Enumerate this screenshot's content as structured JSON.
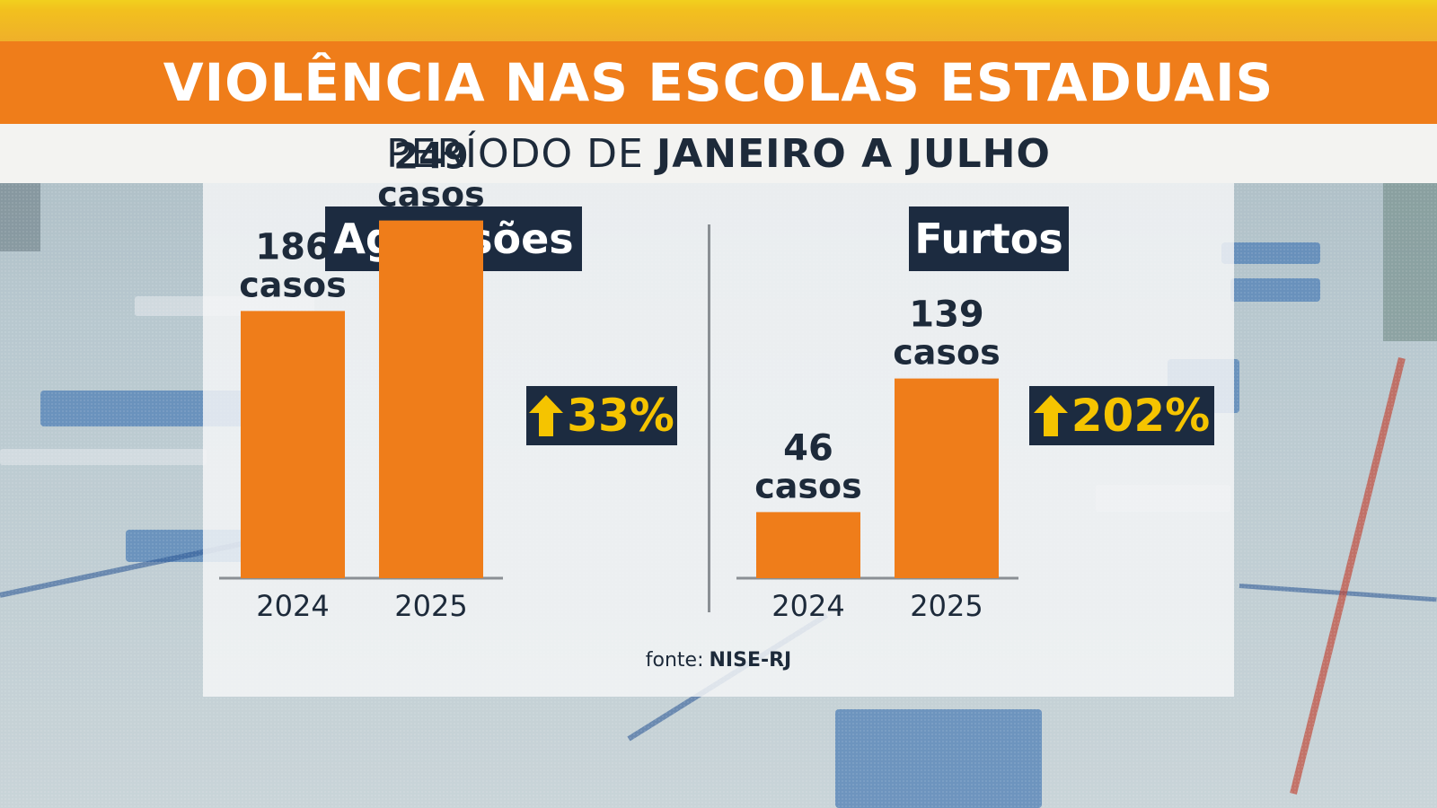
{
  "header": {
    "title": "VIOLÊNCIA NAS ESCOLAS ESTADUAIS",
    "subtitle_prefix": "PERÍODO DE",
    "subtitle_bold": "JANEIRO A JULHO"
  },
  "colors": {
    "bar": "#ef7d1a",
    "header_orange": "#ef7d1a",
    "header_yellow": "#f2c01e",
    "badge_bg": "#1c2b40",
    "badge_text": "#f5c400"
  },
  "icons": {
    "change_arrow": "up-arrow-icon"
  },
  "source": {
    "label": "fonte:",
    "name": "NISE-RJ"
  },
  "chart_data": [
    {
      "type": "bar",
      "title": "Agressões",
      "categories": [
        "2024",
        "2025"
      ],
      "values": [
        186,
        249
      ],
      "value_labels": [
        "186",
        "249"
      ],
      "unit_label": "casos",
      "change": "33%",
      "ylim": [
        0,
        400
      ]
    },
    {
      "type": "bar",
      "title": "Furtos",
      "categories": [
        "2024",
        "2025"
      ],
      "values": [
        46,
        139
      ],
      "value_labels": [
        "46",
        "139"
      ],
      "unit_label": "casos",
      "change": "202%",
      "ylim": [
        0,
        400
      ]
    }
  ]
}
